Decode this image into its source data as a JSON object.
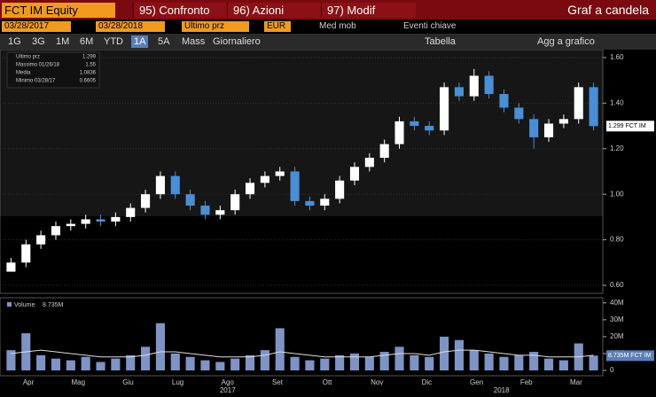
{
  "toolbar": {
    "security": "FCT IM Equity",
    "menu": [
      "95) Confronto",
      "96) Azioni",
      "97) Modif"
    ],
    "chart_kind": "Graf a candela",
    "start_date": "03/28/2017",
    "end_date": "03/28/2018",
    "field": "Ultimo prz",
    "currency": "EUR",
    "moving_avg": "Med mob",
    "events": "Eventi chiave",
    "periods": [
      "1G",
      "3G",
      "1M",
      "6M",
      "YTD",
      "1A",
      "5A",
      "Mass"
    ],
    "frequency": "Giornaliero",
    "table": "Tabella",
    "add": "Agg a grafico"
  },
  "x_axis": {
    "months": [
      "Apr",
      "Mag",
      "Giu",
      "Lug",
      "Ago",
      "Set",
      "Ott",
      "Nov",
      "Dic",
      "Gen",
      "Feb",
      "Mar"
    ],
    "years": [
      "2017",
      "2018"
    ]
  },
  "chart_data": [
    {
      "type": "candlestick",
      "color_up": "#ffffff",
      "color_down": "#4a8fd6",
      "open": [
        0.66,
        0.7,
        0.78,
        0.82,
        0.86,
        0.87,
        0.89,
        0.88,
        0.9,
        0.94,
        1.0,
        1.08,
        1.0,
        0.95,
        0.91,
        0.93,
        1.0,
        1.05,
        1.08,
        1.1,
        0.97,
        0.95,
        0.98,
        1.06,
        1.12,
        1.16,
        1.22,
        1.32,
        1.3,
        1.28,
        1.47,
        1.43,
        1.52,
        1.44,
        1.38,
        1.33,
        1.25,
        1.31,
        1.33,
        1.47
      ],
      "high": [
        0.72,
        0.8,
        0.84,
        0.88,
        0.89,
        0.91,
        0.91,
        0.92,
        0.96,
        1.02,
        1.1,
        1.1,
        1.02,
        0.97,
        0.95,
        1.02,
        1.07,
        1.1,
        1.12,
        1.12,
        0.99,
        1.0,
        1.08,
        1.14,
        1.18,
        1.24,
        1.34,
        1.34,
        1.32,
        1.49,
        1.49,
        1.55,
        1.54,
        1.46,
        1.4,
        1.35,
        1.33,
        1.35,
        1.49,
        1.49
      ],
      "low": [
        0.6605,
        0.68,
        0.76,
        0.8,
        0.84,
        0.85,
        0.86,
        0.86,
        0.88,
        0.92,
        0.98,
        0.98,
        0.93,
        0.89,
        0.89,
        0.91,
        0.98,
        1.03,
        1.06,
        0.95,
        0.93,
        0.93,
        0.96,
        1.04,
        1.1,
        1.14,
        1.2,
        1.28,
        1.26,
        1.26,
        1.41,
        1.41,
        1.42,
        1.36,
        1.31,
        1.2,
        1.23,
        1.29,
        1.31,
        1.28
      ],
      "close": [
        0.7,
        0.78,
        0.82,
        0.86,
        0.87,
        0.89,
        0.88,
        0.9,
        0.94,
        1.0,
        1.08,
        1.0,
        0.95,
        0.91,
        0.93,
        1.0,
        1.05,
        1.08,
        1.1,
        0.97,
        0.95,
        0.98,
        1.06,
        1.12,
        1.16,
        1.22,
        1.32,
        1.3,
        1.28,
        1.47,
        1.43,
        1.52,
        1.44,
        1.38,
        1.33,
        1.25,
        1.31,
        1.33,
        1.47,
        1.299
      ],
      "ylim": [
        0.565,
        1.627
      ],
      "yticks": [
        {
          "value": 0.6,
          "label": "0.60"
        },
        {
          "value": 0.8,
          "label": "0.80"
        },
        {
          "value": 1.0,
          "label": "1.00"
        },
        {
          "value": 1.2,
          "label": "1.20"
        },
        {
          "value": 1.4,
          "label": "1.40"
        },
        {
          "value": 1.6,
          "label": "1.60"
        }
      ],
      "legend": [
        {
          "name": "Ultimo prz",
          "value": 1.299
        },
        {
          "name": "Massimo 01/26/18",
          "value": 1.55
        },
        {
          "name": "Media",
          "value": 1.0836
        },
        {
          "name": "Minimo 03/28/17",
          "value": 0.6605
        }
      ],
      "last_tag": {
        "value": 1.299,
        "label": "1.299 FCT IM"
      }
    },
    {
      "type": "bar",
      "name": "Volume",
      "color": "#7f93c4",
      "average_color": "#dddddd",
      "values": [
        12000000,
        22000000,
        9000000,
        7000000,
        6000000,
        8000000,
        5000000,
        7000000,
        9000000,
        14000000,
        28000000,
        10000000,
        8000000,
        6000000,
        5000000,
        7000000,
        9000000,
        12000000,
        25000000,
        8000000,
        6000000,
        7000000,
        9000000,
        10000000,
        8000000,
        11000000,
        14000000,
        9000000,
        8000000,
        20000000,
        18000000,
        12000000,
        10000000,
        8000000,
        9000000,
        11000000,
        7000000,
        6000000,
        16000000,
        8735000
      ],
      "average": [
        10000000,
        11000000,
        12000000,
        11000000,
        10000000,
        9000000,
        8000000,
        8000000,
        8000000,
        9000000,
        11000000,
        11000000,
        10000000,
        9000000,
        8000000,
        8000000,
        8000000,
        9000000,
        11000000,
        10000000,
        9000000,
        8000000,
        8000000,
        8000000,
        8000000,
        9000000,
        10000000,
        10000000,
        9000000,
        11000000,
        12000000,
        12000000,
        11000000,
        10000000,
        9000000,
        9000000,
        8000000,
        8000000,
        8000000,
        9000000
      ],
      "last": {
        "value": 8735000,
        "label": "8.735M"
      },
      "last_tag": {
        "value": 8735000,
        "label": "8.735M FCT IM"
      },
      "ylim": [
        0,
        42000000
      ],
      "yticks": [
        0,
        {
          "value": 10000000,
          "label": "10M"
        },
        {
          "value": 20000000,
          "label": "20M"
        },
        {
          "value": 30000000,
          "label": "30M"
        },
        {
          "value": 40000000,
          "label": "40M"
        }
      ]
    }
  ]
}
